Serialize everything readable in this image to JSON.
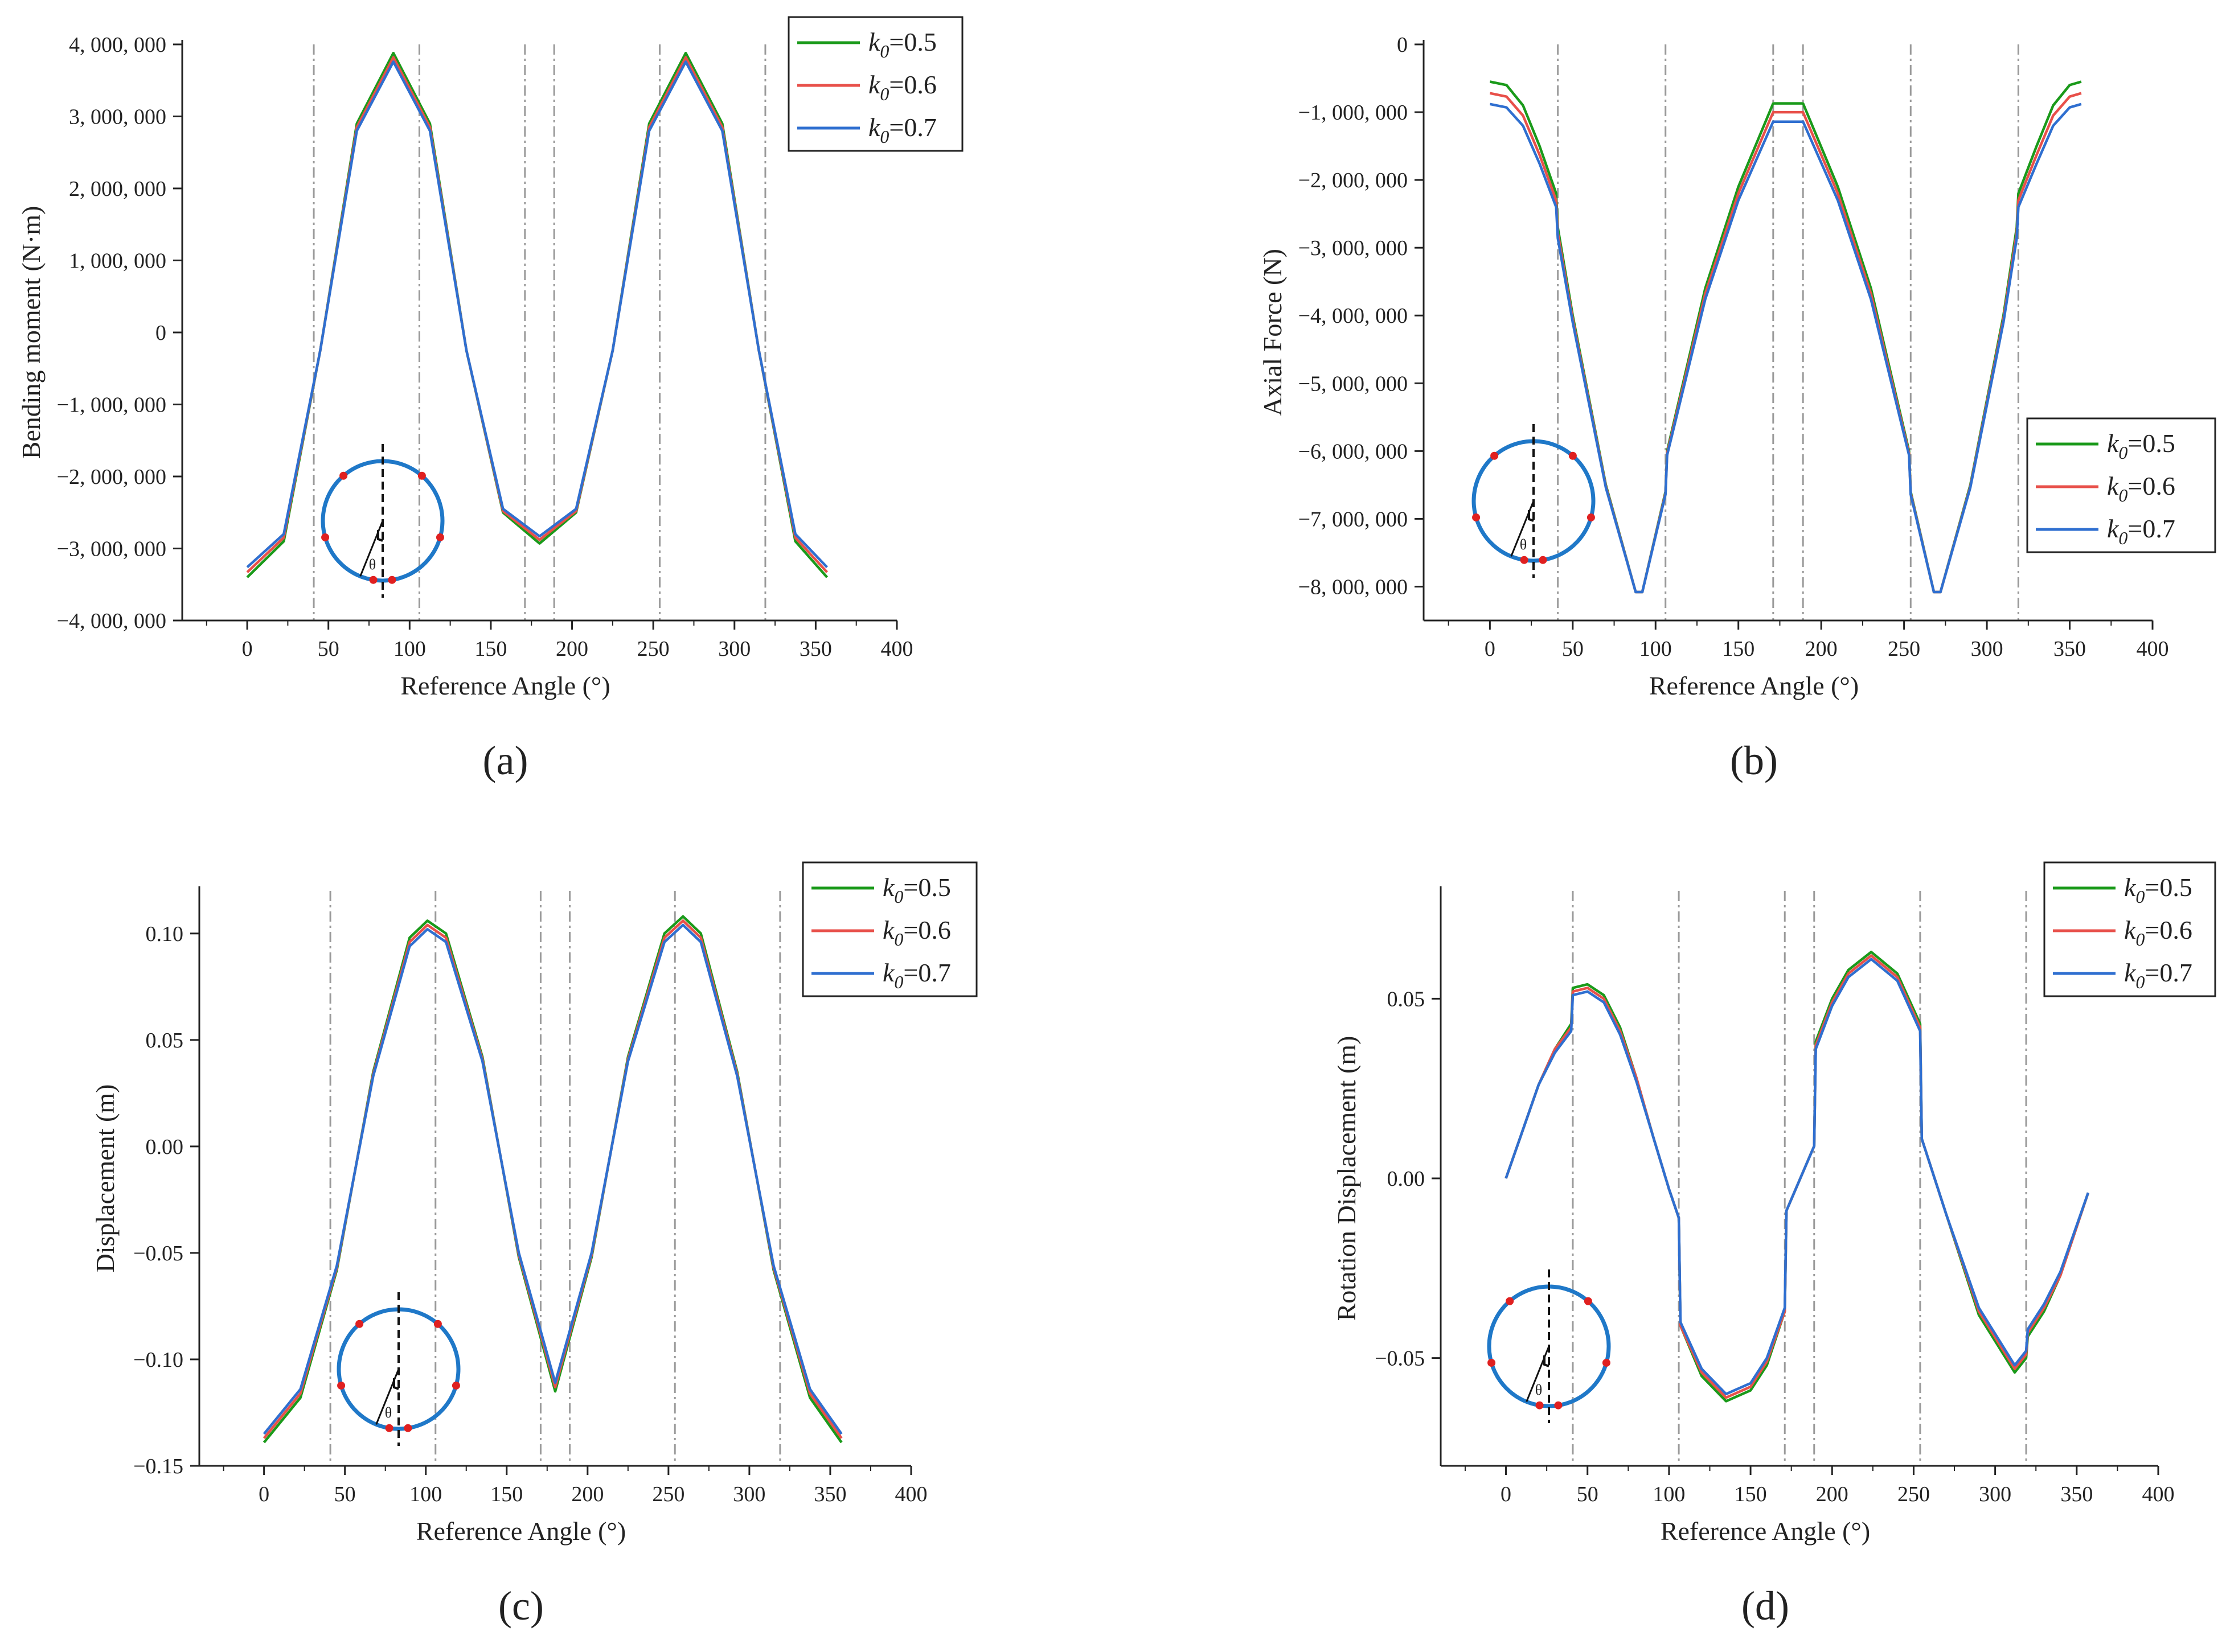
{
  "figure": {
    "legend_series": [
      {
        "sub": "0",
        "value": "=0.5",
        "color": "#1a9a1a"
      },
      {
        "sub": "0",
        "value": "=0.6",
        "color": "#e8504a"
      },
      {
        "sub": "0",
        "value": "=0.7",
        "color": "#2f6fd0"
      }
    ],
    "legend_symbol": "k",
    "inset_angle_symbol": "θ",
    "joint_angles": [
      41,
      106,
      171,
      189,
      254,
      319
    ]
  },
  "chart_data": [
    {
      "id": "a",
      "type": "line",
      "panel_label": "(a)",
      "xlabel": "Reference Angle (°)",
      "ylabel": "Bending moment (N·m)",
      "xlim": [
        -40,
        400
      ],
      "ylim": [
        -4000000,
        4000000
      ],
      "xticks": [
        0,
        50,
        100,
        150,
        200,
        250,
        300,
        350,
        400
      ],
      "yticks": [
        -4000000,
        -3000000,
        -2000000,
        -1000000,
        0,
        1000000,
        2000000,
        3000000,
        4000000
      ],
      "ytick_labels": [
        "−4, 000, 000",
        "−3, 000, 000",
        "−2, 000, 000",
        "−1, 000, 000",
        "0",
        "1, 000, 000",
        "2, 000, 000",
        "3, 000, 000",
        "4, 000, 000"
      ],
      "legend_position": "top-right",
      "series": [
        {
          "name": "k0=0.5",
          "x": [
            0,
            22.5,
            45,
            67.5,
            90,
            112.5,
            135,
            157.5,
            180,
            202.5,
            225,
            247.5,
            270,
            292.5,
            315,
            337.5,
            357
          ],
          "y": [
            -3400000,
            -2900000,
            -250000,
            2900000,
            3880000,
            2900000,
            -250000,
            -2500000,
            -2930000,
            -2500000,
            -250000,
            2900000,
            3880000,
            2900000,
            -250000,
            -2900000,
            -3400000
          ]
        },
        {
          "name": "k0=0.6",
          "x": [
            0,
            22.5,
            45,
            67.5,
            90,
            112.5,
            135,
            157.5,
            180,
            202.5,
            225,
            247.5,
            270,
            292.5,
            315,
            337.5,
            357
          ],
          "y": [
            -3330000,
            -2850000,
            -250000,
            2850000,
            3820000,
            2850000,
            -250000,
            -2480000,
            -2880000,
            -2480000,
            -250000,
            2850000,
            3820000,
            2850000,
            -250000,
            -2850000,
            -3330000
          ]
        },
        {
          "name": "k0=0.7",
          "x": [
            0,
            22.5,
            45,
            67.5,
            90,
            112.5,
            135,
            157.5,
            180,
            202.5,
            225,
            247.5,
            270,
            292.5,
            315,
            337.5,
            357
          ],
          "y": [
            -3260000,
            -2800000,
            -250000,
            2800000,
            3760000,
            2800000,
            -250000,
            -2450000,
            -2830000,
            -2450000,
            -250000,
            2800000,
            3760000,
            2800000,
            -250000,
            -2800000,
            -3260000
          ]
        }
      ]
    },
    {
      "id": "b",
      "type": "line",
      "panel_label": "(b)",
      "xlabel": "Reference Angle (°)",
      "ylabel": "Axial Force (N)",
      "xlim": [
        -40,
        400
      ],
      "ylim": [
        -8500000,
        0
      ],
      "xticks": [
        0,
        50,
        100,
        150,
        200,
        250,
        300,
        350,
        400
      ],
      "yticks": [
        -8000000,
        -7000000,
        -6000000,
        -5000000,
        -4000000,
        -3000000,
        -2000000,
        -1000000,
        0
      ],
      "ytick_labels": [
        "−8, 000, 000",
        "−7, 000, 000",
        "−6, 000, 000",
        "−5, 000, 000",
        "−4, 000, 000",
        "−3, 000, 000",
        "−2, 000, 000",
        "−1, 000, 000",
        "0"
      ],
      "legend_position": "center-right",
      "series": [
        {
          "name": "k0=0.5",
          "x": [
            0,
            10,
            20,
            30,
            40,
            41,
            50,
            70,
            88,
            92,
            106,
            107,
            130,
            150,
            171,
            180,
            189,
            210,
            230,
            253,
            254,
            268,
            272,
            290,
            310,
            318,
            319,
            330,
            340,
            350,
            357
          ],
          "y": [
            -550000,
            -600000,
            -900000,
            -1500000,
            -2200000,
            -2700000,
            -4000000,
            -6500000,
            -8080000,
            -8080000,
            -6600000,
            -6000000,
            -3600000,
            -2100000,
            -870000,
            -870000,
            -870000,
            -2100000,
            -3600000,
            -6000000,
            -6600000,
            -8080000,
            -8080000,
            -6500000,
            -4000000,
            -2700000,
            -2200000,
            -1500000,
            -900000,
            -600000,
            -550000
          ]
        },
        {
          "name": "k0=0.6",
          "x": [
            0,
            10,
            20,
            30,
            40,
            41,
            50,
            70,
            88,
            92,
            106,
            107,
            130,
            150,
            171,
            180,
            189,
            210,
            230,
            253,
            254,
            268,
            272,
            290,
            310,
            318,
            319,
            330,
            340,
            350,
            357
          ],
          "y": [
            -720000,
            -770000,
            -1050000,
            -1630000,
            -2300000,
            -2780000,
            -4050000,
            -6520000,
            -8080000,
            -8080000,
            -6620000,
            -6030000,
            -3680000,
            -2200000,
            -1000000,
            -1000000,
            -1000000,
            -2200000,
            -3680000,
            -6030000,
            -6620000,
            -8080000,
            -8080000,
            -6520000,
            -4050000,
            -2780000,
            -2300000,
            -1630000,
            -1050000,
            -770000,
            -720000
          ]
        },
        {
          "name": "k0=0.7",
          "x": [
            0,
            10,
            20,
            30,
            40,
            41,
            50,
            70,
            88,
            92,
            106,
            107,
            130,
            150,
            171,
            180,
            189,
            210,
            230,
            253,
            254,
            268,
            272,
            290,
            310,
            318,
            319,
            330,
            340,
            350,
            357
          ],
          "y": [
            -880000,
            -930000,
            -1200000,
            -1760000,
            -2400000,
            -2860000,
            -4100000,
            -6540000,
            -8080000,
            -8080000,
            -6640000,
            -6060000,
            -3760000,
            -2300000,
            -1140000,
            -1140000,
            -1140000,
            -2300000,
            -3760000,
            -6060000,
            -6640000,
            -8080000,
            -8080000,
            -6540000,
            -4100000,
            -2860000,
            -2400000,
            -1760000,
            -1200000,
            -930000,
            -880000
          ]
        }
      ]
    },
    {
      "id": "c",
      "type": "line",
      "panel_label": "(c)",
      "xlabel": "Reference Angle (°)",
      "ylabel": "Displacement (m)",
      "xlim": [
        -40,
        400
      ],
      "ylim": [
        -0.15,
        0.12
      ],
      "xticks": [
        0,
        50,
        100,
        150,
        200,
        250,
        300,
        350,
        400
      ],
      "yticks": [
        -0.15,
        -0.1,
        -0.05,
        0.0,
        0.05,
        0.1
      ],
      "ytick_labels": [
        "−0.15",
        "−0.10",
        "−0.05",
        "0.00",
        "0.05",
        "0.10"
      ],
      "legend_position": "top-right",
      "series": [
        {
          "name": "k0=0.5",
          "x": [
            0,
            22.5,
            45,
            67.5,
            90,
            101,
            112.5,
            135,
            157.5,
            180,
            202.5,
            225,
            247.5,
            259,
            270,
            292.5,
            315,
            337.5,
            357
          ],
          "y": [
            -0.139,
            -0.118,
            -0.058,
            0.035,
            0.098,
            0.106,
            0.1,
            0.042,
            -0.052,
            -0.115,
            -0.052,
            0.042,
            0.1,
            0.108,
            0.1,
            0.035,
            -0.058,
            -0.118,
            -0.139
          ]
        },
        {
          "name": "k0=0.6",
          "x": [
            0,
            22.5,
            45,
            67.5,
            90,
            101,
            112.5,
            135,
            157.5,
            180,
            202.5,
            225,
            247.5,
            259,
            270,
            292.5,
            315,
            337.5,
            357
          ],
          "y": [
            -0.137,
            -0.116,
            -0.057,
            0.034,
            0.096,
            0.104,
            0.098,
            0.041,
            -0.051,
            -0.113,
            -0.051,
            0.041,
            0.098,
            0.106,
            0.098,
            0.034,
            -0.057,
            -0.116,
            -0.137
          ]
        },
        {
          "name": "k0=0.7",
          "x": [
            0,
            22.5,
            45,
            67.5,
            90,
            101,
            112.5,
            135,
            157.5,
            180,
            202.5,
            225,
            247.5,
            259,
            270,
            292.5,
            315,
            337.5,
            357
          ],
          "y": [
            -0.135,
            -0.114,
            -0.056,
            0.033,
            0.094,
            0.102,
            0.096,
            0.04,
            -0.05,
            -0.111,
            -0.05,
            0.04,
            0.096,
            0.104,
            0.096,
            0.033,
            -0.056,
            -0.114,
            -0.135
          ]
        }
      ]
    },
    {
      "id": "d",
      "type": "line",
      "panel_label": "(d)",
      "xlabel": "Reference Angle (°)",
      "ylabel": "Rotation Displacement (m)",
      "xlim": [
        -40,
        400
      ],
      "ylim": [
        -0.08,
        0.08
      ],
      "xticks": [
        0,
        50,
        100,
        150,
        200,
        250,
        300,
        350,
        400
      ],
      "yticks": [
        -0.05,
        0.0,
        0.05
      ],
      "ytick_labels": [
        "−0.05",
        "0.00",
        "0.05"
      ],
      "legend_position": "top-right",
      "series": [
        {
          "name": "k0=0.5",
          "x": [
            0,
            10,
            20,
            30,
            40,
            41,
            50,
            60,
            70,
            80,
            90,
            100,
            106,
            107,
            120,
            135,
            150,
            160,
            171,
            172,
            189,
            190,
            200,
            210,
            224,
            240,
            254,
            255,
            270,
            290,
            312,
            319,
            320,
            330,
            340,
            357
          ],
          "y": [
            0.0,
            0.013,
            0.026,
            0.036,
            0.043,
            0.053,
            0.054,
            0.051,
            0.042,
            0.028,
            0.012,
            -0.003,
            -0.011,
            -0.041,
            -0.055,
            -0.062,
            -0.059,
            -0.052,
            -0.037,
            -0.009,
            0.009,
            0.038,
            0.05,
            0.058,
            0.063,
            0.057,
            0.043,
            0.011,
            -0.01,
            -0.038,
            -0.054,
            -0.05,
            -0.044,
            -0.037,
            -0.027,
            -0.004
          ]
        },
        {
          "name": "k0=0.6",
          "x": [
            0,
            10,
            20,
            30,
            40,
            41,
            50,
            60,
            70,
            80,
            90,
            100,
            106,
            107,
            120,
            135,
            150,
            160,
            171,
            172,
            189,
            190,
            200,
            210,
            224,
            240,
            254,
            255,
            270,
            290,
            312,
            319,
            320,
            330,
            340,
            357
          ],
          "y": [
            0.0,
            0.013,
            0.026,
            0.036,
            0.042,
            0.052,
            0.053,
            0.05,
            0.041,
            0.028,
            0.012,
            -0.003,
            -0.011,
            -0.041,
            -0.054,
            -0.061,
            -0.058,
            -0.051,
            -0.037,
            -0.009,
            0.009,
            0.037,
            0.049,
            0.057,
            0.062,
            0.056,
            0.042,
            0.011,
            -0.01,
            -0.037,
            -0.053,
            -0.049,
            -0.043,
            -0.036,
            -0.027,
            -0.004
          ]
        },
        {
          "name": "k0=0.7",
          "x": [
            0,
            10,
            20,
            30,
            40,
            41,
            50,
            60,
            70,
            80,
            90,
            100,
            106,
            107,
            120,
            135,
            150,
            160,
            171,
            172,
            189,
            190,
            200,
            210,
            224,
            240,
            254,
            255,
            270,
            290,
            312,
            319,
            320,
            330,
            340,
            357
          ],
          "y": [
            0.0,
            0.013,
            0.026,
            0.035,
            0.041,
            0.051,
            0.052,
            0.049,
            0.04,
            0.027,
            0.012,
            -0.003,
            -0.011,
            -0.04,
            -0.053,
            -0.06,
            -0.057,
            -0.05,
            -0.036,
            -0.009,
            0.009,
            0.036,
            0.048,
            0.056,
            0.061,
            0.055,
            0.041,
            0.011,
            -0.01,
            -0.036,
            -0.052,
            -0.048,
            -0.042,
            -0.035,
            -0.026,
            -0.004
          ]
        }
      ]
    }
  ]
}
